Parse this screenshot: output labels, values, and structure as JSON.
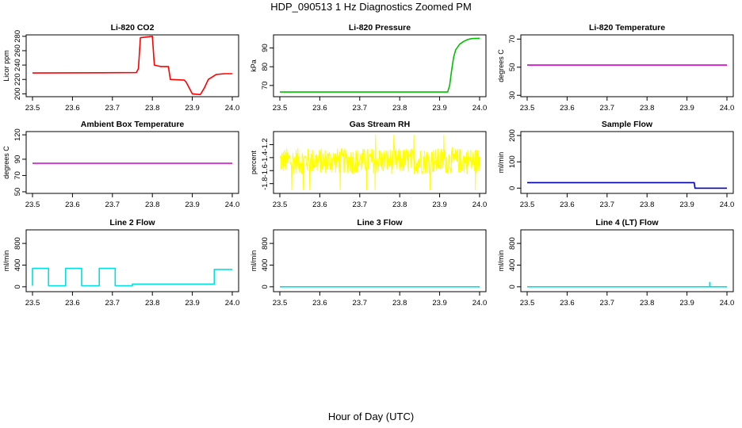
{
  "figure": {
    "title": "HDP_090513  1 Hz Diagnostics Zoomed PM",
    "xlabel": "Hour of Day (UTC)"
  },
  "chart_data": [
    {
      "type": "line",
      "title": "Li-820 CO2",
      "ylabel": "Licor ppm",
      "color": "#ff0000",
      "xlim": [
        23.5,
        24.0
      ],
      "xticks": [
        "23.5",
        "23.6",
        "23.7",
        "23.8",
        "23.9",
        "24.0"
      ],
      "ylim": [
        196,
        282
      ],
      "yticks": [
        "200",
        "220",
        "240",
        "260",
        "280"
      ],
      "series": [
        {
          "name": "CO2",
          "x": [
            23.5,
            23.76,
            23.765,
            23.77,
            23.8,
            23.805,
            23.82,
            23.84,
            23.845,
            23.88,
            23.885,
            23.9,
            23.92,
            23.93,
            23.94,
            23.96,
            23.98,
            24.0
          ],
          "y": [
            229,
            229.5,
            235,
            278,
            280,
            240,
            238,
            238,
            220,
            219,
            216,
            200,
            199,
            208,
            220,
            227,
            228,
            228
          ]
        }
      ]
    },
    {
      "type": "line",
      "title": "Li-820 Pressure",
      "ylabel": "kPa",
      "color": "#00c000",
      "xlim": [
        23.5,
        24.0
      ],
      "xticks": [
        "23.5",
        "23.6",
        "23.7",
        "23.8",
        "23.9",
        "24.0"
      ],
      "ylim": [
        64,
        97
      ],
      "yticks": [
        "70",
        "80",
        "90"
      ],
      "series": [
        {
          "name": "Pressure",
          "x": [
            23.5,
            23.92,
            23.925,
            23.93,
            23.935,
            23.94,
            23.95,
            23.96,
            23.97,
            23.98,
            24.0
          ],
          "y": [
            66.5,
            66.5,
            70,
            78,
            85,
            89,
            92,
            93.5,
            94.5,
            95,
            95.2
          ]
        }
      ]
    },
    {
      "type": "line",
      "title": "Li-820 Temperature",
      "ylabel": "degrees C",
      "color": "#d000d0",
      "xlim": [
        23.5,
        24.0
      ],
      "xticks": [
        "23.5",
        "23.6",
        "23.7",
        "23.8",
        "23.9",
        "24.0"
      ],
      "ylim": [
        29,
        73
      ],
      "yticks": [
        "30",
        "50",
        "70"
      ],
      "series": [
        {
          "name": "Temperature",
          "x": [
            23.5,
            24.0
          ],
          "y": [
            51.5,
            51.5
          ]
        }
      ]
    },
    {
      "type": "line",
      "title": "Ambient Box Temperature",
      "ylabel": "degrees C",
      "color": "#d000d0",
      "xlim": [
        23.5,
        24.0
      ],
      "xticks": [
        "23.5",
        "23.6",
        "23.7",
        "23.8",
        "23.9",
        "24.0"
      ],
      "ylim": [
        48,
        124
      ],
      "yticks": [
        "50",
        "70",
        "90",
        "120"
      ],
      "series": [
        {
          "name": "Box Temperature",
          "x": [
            23.5,
            24.0
          ],
          "y": [
            85,
            85
          ]
        }
      ]
    },
    {
      "type": "line",
      "title": "Gas Stream RH",
      "ylabel": "percent",
      "color": "#ffff00",
      "xlim": [
        23.5,
        24.0
      ],
      "xticks": [
        "23.5",
        "23.6",
        "23.7",
        "23.8",
        "23.9",
        "24.0"
      ],
      "ylim": [
        -1.95,
        -1.0
      ],
      "yticks": [
        "-1.8",
        "-1.6",
        "-1.4",
        "-1.2"
      ],
      "noise": {
        "center": -1.45,
        "amplitude": 0.2,
        "spike_low": -1.9,
        "spike_high": -1.05
      },
      "series": [
        {
          "name": "RH",
          "x": [
            23.5,
            24.0
          ],
          "y": [
            -1.45,
            -1.45
          ]
        }
      ]
    },
    {
      "type": "line",
      "title": "Sample Flow",
      "ylabel": "ml/min",
      "color": "#0000c0",
      "xlim": [
        23.5,
        24.0
      ],
      "xticks": [
        "23.5",
        "23.6",
        "23.7",
        "23.8",
        "23.9",
        "24.0"
      ],
      "ylim": [
        -20,
        215
      ],
      "yticks": [
        "0",
        "100",
        "200"
      ],
      "series": [
        {
          "name": "Sample Flow",
          "x": [
            23.5,
            23.918,
            23.92,
            24.0
          ],
          "y": [
            21,
            21,
            0,
            0
          ]
        }
      ]
    },
    {
      "type": "line",
      "title": "Line 2 Flow",
      "ylabel": "ml/min",
      "color": "#00e0e0",
      "xlim": [
        23.5,
        24.0
      ],
      "xticks": [
        "23.5",
        "23.6",
        "23.7",
        "23.8",
        "23.9",
        "24.0"
      ],
      "ylim": [
        -90,
        1050
      ],
      "yticks": [
        "0",
        "400",
        "800"
      ],
      "series": [
        {
          "name": "Line 2 Flow",
          "x": [
            23.5,
            23.5,
            23.54,
            23.54,
            23.583,
            23.583,
            23.623,
            23.623,
            23.667,
            23.667,
            23.707,
            23.707,
            23.75,
            23.75,
            23.955,
            23.955,
            24.0
          ],
          "y": [
            20,
            340,
            340,
            20,
            20,
            340,
            340,
            20,
            20,
            340,
            340,
            20,
            20,
            50,
            50,
            320,
            320
          ]
        }
      ]
    },
    {
      "type": "line",
      "title": "Line 3 Flow",
      "ylabel": "ml/min",
      "color": "#00e0e0",
      "xlim": [
        23.5,
        24.0
      ],
      "xticks": [
        "23.5",
        "23.6",
        "23.7",
        "23.8",
        "23.9",
        "24.0"
      ],
      "ylim": [
        -90,
        1050
      ],
      "yticks": [
        "0",
        "400",
        "800"
      ],
      "series": [
        {
          "name": "Line 3 Flow",
          "x": [
            23.5,
            24.0
          ],
          "y": [
            0,
            0
          ]
        }
      ]
    },
    {
      "type": "line",
      "title": "Line 4 (LT) Flow",
      "ylabel": "ml/min",
      "color": "#00e0e0",
      "xlim": [
        23.5,
        24.0
      ],
      "xticks": [
        "23.5",
        "23.6",
        "23.7",
        "23.8",
        "23.9",
        "24.0"
      ],
      "ylim": [
        -90,
        1050
      ],
      "yticks": [
        "0",
        "400",
        "800"
      ],
      "series": [
        {
          "name": "Line 4 Flow",
          "x": [
            23.5,
            23.957,
            23.957,
            23.9575,
            23.9575,
            24.0
          ],
          "y": [
            0,
            0,
            80,
            80,
            0,
            0
          ]
        }
      ]
    }
  ]
}
